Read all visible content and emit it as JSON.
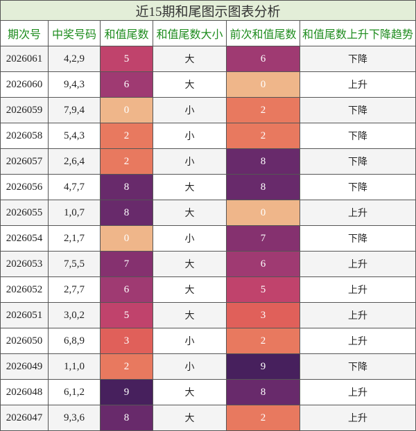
{
  "title": "近15期和尾图示图表分析",
  "table": {
    "headers": [
      "期次号",
      "中奖号码",
      "和值尾数",
      "和值尾数大小",
      "前次和值尾数",
      "和值尾数上升下降趋势"
    ],
    "rows": [
      [
        "2026061",
        "4,2,9",
        "5",
        "大",
        "6",
        "下降"
      ],
      [
        "2026060",
        "9,4,3",
        "6",
        "大",
        "0",
        "上升"
      ],
      [
        "2026059",
        "7,9,4",
        "0",
        "小",
        "2",
        "下降"
      ],
      [
        "2026058",
        "5,4,3",
        "2",
        "小",
        "2",
        "下降"
      ],
      [
        "2026057",
        "2,6,4",
        "2",
        "小",
        "8",
        "下降"
      ],
      [
        "2026056",
        "4,7,7",
        "8",
        "大",
        "8",
        "下降"
      ],
      [
        "2026055",
        "1,0,7",
        "8",
        "大",
        "0",
        "上升"
      ],
      [
        "2026054",
        "2,1,7",
        "0",
        "小",
        "7",
        "下降"
      ],
      [
        "2026053",
        "7,5,5",
        "7",
        "大",
        "6",
        "上升"
      ],
      [
        "2026052",
        "2,7,7",
        "6",
        "大",
        "5",
        "上升"
      ],
      [
        "2026051",
        "3,0,2",
        "5",
        "大",
        "3",
        "上升"
      ],
      [
        "2026050",
        "6,8,9",
        "3",
        "小",
        "2",
        "上升"
      ],
      [
        "2026049",
        "1,1,0",
        "2",
        "小",
        "9",
        "下降"
      ],
      [
        "2026048",
        "6,1,2",
        "9",
        "大",
        "8",
        "上升"
      ],
      [
        "2026047",
        "9,3,6",
        "8",
        "大",
        "2",
        "上升"
      ]
    ],
    "digit_colors": {
      "0": "#efb68a",
      "2": "#e8795f",
      "3": "#e0605a",
      "5": "#c0436c",
      "6": "#9f3a72",
      "7": "#85316f",
      "8": "#682a6b",
      "9": "#47205d"
    }
  }
}
